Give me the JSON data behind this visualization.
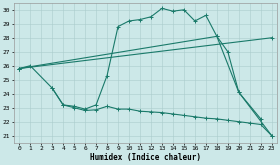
{
  "xlabel": "Humidex (Indice chaleur)",
  "bg_color": "#cce8e8",
  "grid_color": "#aacccc",
  "line_color": "#1a7a6a",
  "xlim": [
    -0.5,
    23.5
  ],
  "ylim": [
    20.5,
    30.5
  ],
  "xticks": [
    0,
    1,
    2,
    3,
    4,
    5,
    6,
    7,
    8,
    9,
    10,
    11,
    12,
    13,
    14,
    15,
    16,
    17,
    18,
    19,
    20,
    21,
    22,
    23
  ],
  "yticks": [
    21,
    22,
    23,
    24,
    25,
    26,
    27,
    28,
    29,
    30
  ],
  "line1_x": [
    0,
    1,
    3,
    4,
    5,
    6,
    7,
    8,
    9,
    10,
    11,
    12,
    13,
    14,
    15,
    16,
    17,
    18,
    19,
    20,
    22
  ],
  "line1_y": [
    25.8,
    26.0,
    24.4,
    23.2,
    23.1,
    22.9,
    23.2,
    25.3,
    28.8,
    29.2,
    29.3,
    29.5,
    30.1,
    29.9,
    30.0,
    29.2,
    29.6,
    28.1,
    27.0,
    24.1,
    22.2
  ],
  "line2_x": [
    3,
    4,
    5,
    6,
    7,
    8,
    9,
    10,
    11,
    12,
    13,
    14,
    15,
    16,
    17,
    18,
    19,
    20,
    21,
    22,
    23
  ],
  "line2_y": [
    24.4,
    23.2,
    23.0,
    22.8,
    22.85,
    23.1,
    22.9,
    22.9,
    22.75,
    22.7,
    22.65,
    22.55,
    22.45,
    22.35,
    22.25,
    22.2,
    22.1,
    22.0,
    21.9,
    21.8,
    21.0
  ],
  "line3_x": [
    0,
    18,
    20,
    23
  ],
  "line3_y": [
    25.8,
    28.1,
    24.1,
    21.0
  ],
  "line4_x": [
    0,
    23
  ],
  "line4_y": [
    25.8,
    28.0
  ]
}
